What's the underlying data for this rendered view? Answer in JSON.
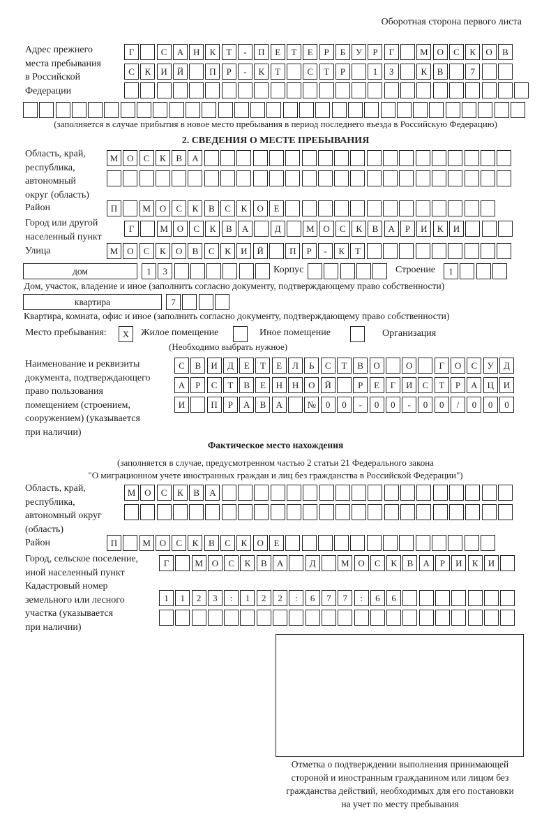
{
  "header": "Оборотная сторона первого листа",
  "previous_address": {
    "label": [
      "Адрес прежнего",
      "места пребывания",
      "в Российской",
      "Федерации"
    ],
    "rows": [
      [
        "Г",
        " ",
        "С",
        "А",
        "Н",
        "К",
        "Т",
        "-",
        "П",
        "Е",
        "Т",
        "Е",
        "Р",
        "Б",
        "У",
        "Р",
        "Г",
        " ",
        "М",
        "О",
        "С",
        "К",
        "О",
        "В"
      ],
      [
        "С",
        "К",
        "И",
        "Й",
        " ",
        "П",
        "Р",
        "-",
        "К",
        "Т",
        " ",
        "С",
        "Т",
        "Р",
        " ",
        "1",
        "3",
        " ",
        "К",
        "В",
        " ",
        "7",
        " ",
        " "
      ],
      [
        " ",
        " ",
        " ",
        " ",
        " ",
        " ",
        " ",
        " ",
        " ",
        " ",
        " ",
        " ",
        " ",
        " ",
        " ",
        " ",
        " ",
        " ",
        " ",
        " ",
        " ",
        " ",
        " ",
        " ",
        " "
      ],
      [
        " ",
        " ",
        " ",
        " ",
        " ",
        " ",
        " ",
        " ",
        " ",
        " ",
        " ",
        " ",
        " ",
        " ",
        " ",
        " ",
        " ",
        " ",
        " ",
        " ",
        " ",
        " ",
        " ",
        " ",
        " ",
        " ",
        " ",
        " ",
        " ",
        " ",
        " "
      ]
    ],
    "note": "(заполняется в случае прибытия в новое место пребывания в период последнего въезда в Российскую Федерацию)"
  },
  "section2": {
    "title": "2. СВЕДЕНИЯ О МЕСТЕ ПРЕБЫВАНИЯ",
    "region_label": [
      "Область, край,",
      "республика,",
      "автономный",
      "округ (область)"
    ],
    "region_rows": [
      [
        "М",
        "О",
        "С",
        "К",
        "В",
        "А",
        " ",
        " ",
        " ",
        " ",
        " ",
        " ",
        " ",
        " ",
        " ",
        " ",
        " ",
        " ",
        " ",
        " ",
        " ",
        " ",
        " ",
        " ",
        " "
      ],
      [
        " ",
        " ",
        " ",
        " ",
        " ",
        " ",
        " ",
        " ",
        " ",
        " ",
        " ",
        " ",
        " ",
        " ",
        " ",
        " ",
        " ",
        " ",
        " ",
        " ",
        " ",
        " ",
        " ",
        " ",
        " "
      ]
    ],
    "district_label": "Район",
    "district": [
      "П",
      " ",
      "М",
      "О",
      "С",
      "К",
      "В",
      "С",
      "К",
      "О",
      "Е",
      " ",
      " ",
      " ",
      " ",
      " ",
      " ",
      " ",
      " ",
      " ",
      " ",
      " ",
      " ",
      " "
    ],
    "city_label": [
      "Город или другой",
      "населенный пункт"
    ],
    "city": [
      "Г",
      " ",
      "М",
      "О",
      "С",
      "К",
      "В",
      "А",
      " ",
      "Д",
      " ",
      "М",
      "О",
      "С",
      "К",
      "В",
      "А",
      "Р",
      "И",
      "К",
      "И",
      " ",
      " ",
      " "
    ],
    "street_label": "Улица",
    "street": [
      "М",
      "О",
      "С",
      "К",
      "О",
      "В",
      "С",
      "К",
      "И",
      "Й",
      " ",
      "П",
      "Р",
      "-",
      "К",
      "Т",
      " ",
      " ",
      " ",
      " ",
      " ",
      " ",
      " ",
      " ",
      " "
    ],
    "house_type": "дом",
    "house": [
      "1",
      "3",
      " ",
      " ",
      " ",
      " ",
      " ",
      " "
    ],
    "building_label": "Корпус",
    "building": [
      " ",
      " ",
      " ",
      " ",
      " "
    ],
    "structure_label": "Строение",
    "structure": [
      "1",
      " ",
      " ",
      " "
    ],
    "house_caption": "Дом, участок, владение и иное (заполнить согласно документу, подтверждающему право собственности)",
    "apartment_type": "квартира",
    "apartment": [
      "7",
      " ",
      " ",
      " "
    ],
    "apartment_caption": "Квартира, комната, офис и иное (заполнить согласно документу, подтверждающему право собственности)",
    "stay_label": "Место пребывания:",
    "stay_options": [
      {
        "label": "Жилое помещение",
        "checked": true,
        "mark": "X"
      },
      {
        "label": "Иное помещение",
        "checked": false,
        "mark": ""
      },
      {
        "label": "Организация",
        "checked": false,
        "mark": ""
      }
    ],
    "stay_hint": "(Необходимо выбрать нужное)",
    "doc_label": [
      "Наименование и реквизиты",
      "документа, подтверждающего",
      "право пользования",
      "помещением (строением,",
      "сооружением) (указывается",
      "при наличии)"
    ],
    "doc_rows": [
      [
        "С",
        "В",
        "И",
        "Д",
        "Е",
        "Т",
        "Е",
        "Л",
        "Ь",
        "С",
        "Т",
        "В",
        "О",
        " ",
        "О",
        " ",
        "Г",
        "О",
        "С",
        "У",
        "Д"
      ],
      [
        "А",
        "Р",
        "С",
        "Т",
        "В",
        "Е",
        "Н",
        "Н",
        "О",
        "Й",
        " ",
        "Р",
        "Е",
        "Г",
        "И",
        "С",
        "Т",
        "Р",
        "А",
        "Ц",
        "И"
      ],
      [
        "И",
        " ",
        "П",
        "Р",
        "А",
        "В",
        "А",
        " ",
        "№",
        "0",
        "0",
        "-",
        "0",
        "0",
        "-",
        "0",
        "0",
        "/",
        "0",
        "0",
        "0"
      ]
    ]
  },
  "actual": {
    "title": "Фактическое место нахождения",
    "note1": "(заполняется в случае, предусмотренном частью 2 статьи 21 Федерального закона",
    "note2": "\"О миграционном учете иностранных граждан и лиц без гражданства в Российской Федерации\")",
    "region_label": [
      "Область, край,",
      "республика,",
      "автономный округ",
      "(область)"
    ],
    "region_rows": [
      [
        "М",
        "О",
        "С",
        "К",
        "В",
        "А",
        " ",
        " ",
        " ",
        " ",
        " ",
        " ",
        " ",
        " ",
        " ",
        " ",
        " ",
        " ",
        " ",
        " ",
        " ",
        " ",
        " ",
        " "
      ],
      [
        " ",
        " ",
        " ",
        " ",
        " ",
        " ",
        " ",
        " ",
        " ",
        " ",
        " ",
        " ",
        " ",
        " ",
        " ",
        " ",
        " ",
        " ",
        " ",
        " ",
        " ",
        " ",
        " ",
        " "
      ]
    ],
    "district_label": "Район",
    "district": [
      "П",
      " ",
      "М",
      "О",
      "С",
      "К",
      "В",
      "С",
      "К",
      "О",
      "Е",
      " ",
      " ",
      " ",
      " ",
      " ",
      " ",
      " ",
      " ",
      " ",
      " ",
      " ",
      " ",
      " "
    ],
    "city_label": [
      "Город, сельское поселение,",
      "иной населенный пункт"
    ],
    "city": [
      "Г",
      " ",
      "М",
      "О",
      "С",
      "К",
      "В",
      "А",
      " ",
      "Д",
      " ",
      "М",
      "О",
      "С",
      "К",
      "В",
      "А",
      "Р",
      "И",
      "К",
      "И",
      " "
    ],
    "cadastral_label": [
      "Кадастровый номер",
      "земельного или лесного",
      "участка (указывается",
      "при наличии)"
    ],
    "cadastral_rows": [
      [
        "1",
        "1",
        "2",
        "3",
        ":",
        "1",
        "2",
        "2",
        ":",
        "6",
        "7",
        "7",
        ":",
        "6",
        "6",
        " ",
        " ",
        " ",
        " ",
        " ",
        " ",
        " "
      ],
      [
        " ",
        " ",
        " ",
        " ",
        " ",
        " ",
        " ",
        " ",
        " ",
        " ",
        " ",
        " ",
        " ",
        " ",
        " ",
        " ",
        " ",
        " ",
        " ",
        " ",
        " ",
        " "
      ]
    ]
  },
  "confirmation_caption": [
    "Отметка о подтверждении выполнения принимающей",
    "стороной и иностранным гражданином или лицом без",
    "гражданства действий, необходимых для его постановки",
    "на учет по месту пребывания"
  ]
}
